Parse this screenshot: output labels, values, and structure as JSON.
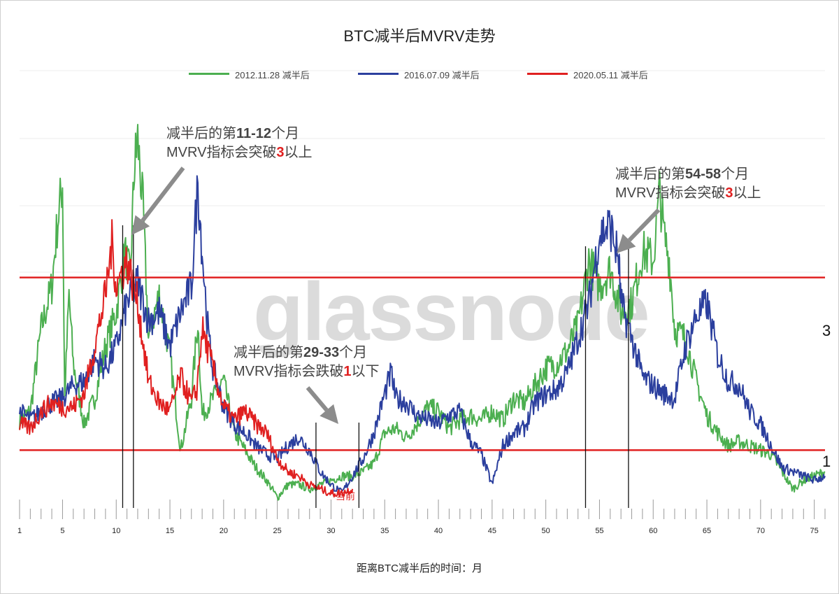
{
  "chart_data": {
    "type": "line",
    "title": "BTC减半后MVRV走势",
    "xlabel": "距离BTC减半后的时间：月",
    "ylabel": "",
    "xlim": [
      1,
      76
    ],
    "ylim": [
      0.2,
      5.0
    ],
    "x_ticks": [
      1,
      5,
      10,
      15,
      20,
      25,
      30,
      35,
      40,
      45,
      50,
      55,
      60,
      65,
      70,
      75
    ],
    "grid": true,
    "legend_position": "top-center",
    "series": [
      {
        "name": "2012.11.28 减半后",
        "color": "#4caf50",
        "points": [
          [
            1,
            1.35
          ],
          [
            2,
            1.45
          ],
          [
            3,
            2.4
          ],
          [
            4,
            2.9
          ],
          [
            4.5,
            3.6
          ],
          [
            5,
            4.1
          ],
          [
            5.2,
            1.6
          ],
          [
            5.6,
            2.8
          ],
          [
            6,
            2.0
          ],
          [
            7,
            1.3
          ],
          [
            8,
            1.6
          ],
          [
            9,
            2.2
          ],
          [
            10,
            2.6
          ],
          [
            10.8,
            3.3
          ],
          [
            11.3,
            3.0
          ],
          [
            11.7,
            4.3
          ],
          [
            12,
            4.6
          ],
          [
            12.5,
            3.8
          ],
          [
            13,
            2.3
          ],
          [
            14,
            2.8
          ],
          [
            15,
            2.1
          ],
          [
            16,
            1.0
          ],
          [
            17,
            1.6
          ],
          [
            17.6,
            2.5
          ],
          [
            18,
            1.4
          ],
          [
            19,
            1.6
          ],
          [
            20,
            1.8
          ],
          [
            21,
            1.2
          ],
          [
            22,
            1.0
          ],
          [
            23,
            0.8
          ],
          [
            24,
            0.65
          ],
          [
            25,
            0.45
          ],
          [
            26,
            0.6
          ],
          [
            27,
            0.6
          ],
          [
            28,
            0.55
          ],
          [
            29,
            0.6
          ],
          [
            30,
            0.65
          ],
          [
            31,
            0.7
          ],
          [
            32,
            0.7
          ],
          [
            33,
            0.75
          ],
          [
            34,
            0.85
          ],
          [
            35,
            1.2
          ],
          [
            36,
            1.25
          ],
          [
            37,
            1.15
          ],
          [
            38,
            1.3
          ],
          [
            39,
            1.5
          ],
          [
            40,
            1.45
          ],
          [
            41,
            1.25
          ],
          [
            42,
            1.35
          ],
          [
            43,
            1.4
          ],
          [
            44,
            1.35
          ],
          [
            45,
            1.45
          ],
          [
            46,
            1.35
          ],
          [
            47,
            1.6
          ],
          [
            48,
            1.55
          ],
          [
            49,
            1.75
          ],
          [
            50,
            1.95
          ],
          [
            51,
            2.0
          ],
          [
            52,
            2.15
          ],
          [
            53,
            2.45
          ],
          [
            54,
            3.2
          ],
          [
            55,
            2.9
          ],
          [
            56,
            3.1
          ],
          [
            57,
            2.6
          ],
          [
            58,
            2.7
          ],
          [
            59,
            3.3
          ],
          [
            60,
            3.2
          ],
          [
            60.6,
            4.0
          ],
          [
            61,
            3.5
          ],
          [
            61.5,
            3.2
          ],
          [
            62,
            2.4
          ],
          [
            63,
            2.3
          ],
          [
            64,
            1.8
          ],
          [
            65,
            1.4
          ],
          [
            66,
            1.2
          ],
          [
            67,
            1.05
          ],
          [
            68,
            1.1
          ],
          [
            69,
            1.05
          ],
          [
            70,
            1.0
          ],
          [
            71,
            0.95
          ],
          [
            72,
            0.75
          ],
          [
            73,
            0.55
          ],
          [
            74,
            0.65
          ],
          [
            75,
            0.7
          ],
          [
            76,
            0.75
          ]
        ]
      },
      {
        "name": "2016.07.09 减半后",
        "color": "#2b3f9e",
        "points": [
          [
            1,
            1.45
          ],
          [
            2,
            1.35
          ],
          [
            3,
            1.45
          ],
          [
            4,
            1.55
          ],
          [
            5,
            1.6
          ],
          [
            6,
            1.75
          ],
          [
            7,
            1.8
          ],
          [
            8,
            2.05
          ],
          [
            9,
            1.95
          ],
          [
            10,
            2.2
          ],
          [
            11,
            2.7
          ],
          [
            12,
            2.95
          ],
          [
            13,
            2.5
          ],
          [
            14,
            2.6
          ],
          [
            15,
            2.2
          ],
          [
            16,
            2.6
          ],
          [
            17,
            2.9
          ],
          [
            17.6,
            4.1
          ],
          [
            18,
            3.3
          ],
          [
            18.6,
            2.3
          ],
          [
            19,
            1.95
          ],
          [
            20,
            1.5
          ],
          [
            21,
            1.3
          ],
          [
            22,
            1.2
          ],
          [
            23,
            1.05
          ],
          [
            24,
            0.95
          ],
          [
            25,
            0.9
          ],
          [
            26,
            1.05
          ],
          [
            27,
            1.15
          ],
          [
            28,
            1.0
          ],
          [
            29,
            0.75
          ],
          [
            30,
            0.6
          ],
          [
            31,
            0.5
          ],
          [
            32,
            0.7
          ],
          [
            33,
            0.9
          ],
          [
            34,
            1.2
          ],
          [
            35,
            1.65
          ],
          [
            35.6,
            1.9
          ],
          [
            36,
            1.6
          ],
          [
            37,
            1.55
          ],
          [
            38,
            1.4
          ],
          [
            39,
            1.35
          ],
          [
            40,
            1.3
          ],
          [
            41,
            1.4
          ],
          [
            42,
            1.45
          ],
          [
            43,
            1.1
          ],
          [
            44,
            0.95
          ],
          [
            45,
            0.6
          ],
          [
            46,
            1.05
          ],
          [
            47,
            1.2
          ],
          [
            48,
            1.25
          ],
          [
            49,
            1.55
          ],
          [
            50,
            1.65
          ],
          [
            51,
            1.7
          ],
          [
            52,
            1.9
          ],
          [
            53,
            2.3
          ],
          [
            54,
            2.7
          ],
          [
            55,
            3.5
          ],
          [
            56,
            3.6
          ],
          [
            56.8,
            3.2
          ],
          [
            57,
            2.7
          ],
          [
            58,
            2.3
          ],
          [
            59,
            1.85
          ],
          [
            60,
            1.75
          ],
          [
            61,
            1.65
          ],
          [
            62,
            1.6
          ],
          [
            63,
            2.2
          ],
          [
            64,
            2.55
          ],
          [
            65,
            2.7
          ],
          [
            66,
            2.1
          ],
          [
            67,
            1.8
          ],
          [
            68,
            1.75
          ],
          [
            69,
            1.45
          ],
          [
            70,
            1.3
          ],
          [
            71,
            1.05
          ],
          [
            72,
            0.8
          ],
          [
            73,
            0.75
          ],
          [
            74,
            0.7
          ],
          [
            75,
            0.65
          ],
          [
            76,
            0.7
          ]
        ]
      },
      {
        "name": "2020.05.11 减半后",
        "color": "#e02020",
        "points": [
          [
            1,
            1.3
          ],
          [
            2,
            1.25
          ],
          [
            3,
            1.45
          ],
          [
            4,
            1.55
          ],
          [
            5,
            1.5
          ],
          [
            6,
            1.5
          ],
          [
            7,
            1.65
          ],
          [
            8,
            2.2
          ],
          [
            9,
            2.8
          ],
          [
            9.6,
            3.4
          ],
          [
            10,
            2.9
          ],
          [
            11,
            3.2
          ],
          [
            12,
            2.7
          ],
          [
            13,
            1.8
          ],
          [
            14,
            1.55
          ],
          [
            15,
            1.45
          ],
          [
            16,
            1.85
          ],
          [
            17,
            1.55
          ],
          [
            17.5,
            1.7
          ],
          [
            18,
            2.4
          ],
          [
            19,
            1.95
          ],
          [
            20,
            1.5
          ],
          [
            21,
            1.35
          ],
          [
            22,
            1.45
          ],
          [
            23,
            1.3
          ],
          [
            24,
            1.2
          ],
          [
            25,
            0.9
          ],
          [
            26,
            0.75
          ],
          [
            27,
            0.7
          ],
          [
            28,
            0.6
          ],
          [
            29,
            0.55
          ],
          [
            30,
            0.5
          ],
          [
            31,
            0.5
          ],
          [
            32,
            0.55
          ]
        ]
      }
    ],
    "reference_lines": [
      {
        "y": 3,
        "label": "3",
        "color": "#e02020"
      },
      {
        "y": 1,
        "label": "1",
        "color": "#e02020"
      }
    ],
    "vertical_markers": [
      10.6,
      11.6,
      28.6,
      32.6,
      53.7,
      57.7
    ],
    "annotations": [
      {
        "line1_pre": "减半后的第",
        "line1_bold": "11-12",
        "line1_post": "个月",
        "line2_pre": "MVRV指标会突破",
        "line2_red": "3",
        "line2_post": "以上"
      },
      {
        "line1_pre": "减半后的第",
        "line1_bold": "54-58",
        "line1_post": "个月",
        "line2_pre": "MVRV指标会突破",
        "line2_red": "3",
        "line2_post": "以上"
      },
      {
        "line1_pre": "减半后的第",
        "line1_bold": "29-33",
        "line1_post": "个月",
        "line2_pre": "MVRV指标会跌破",
        "line2_red": "1",
        "line2_post": "以下"
      }
    ],
    "current_label": "当前",
    "watermark": "glassnode"
  }
}
